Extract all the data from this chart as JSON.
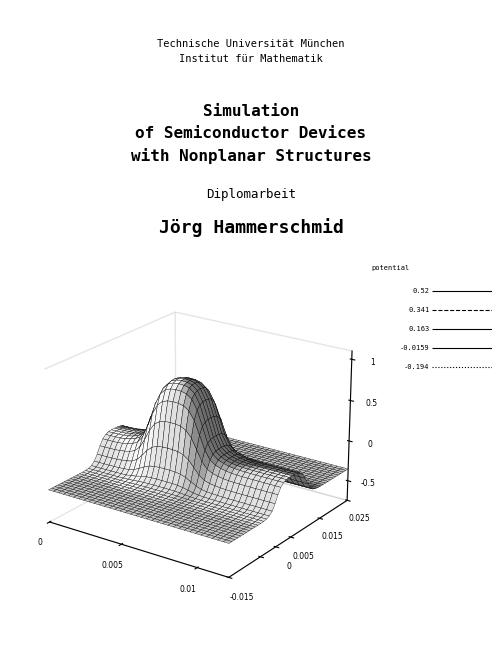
{
  "line1": "Technische Universität München",
  "line2": "Institut für Mathematik",
  "title_line1": "Simulation",
  "title_line2": "of Semiconductor Devices",
  "title_line3": "with Nonplanar Structures",
  "subtitle": "Diplomarbeit",
  "author": "Jörg Hammerschmid",
  "legend_title": "potential",
  "legend_values": [
    0.52,
    0.341,
    0.163,
    -0.0159,
    -0.194
  ],
  "legend_styles": [
    "-",
    "--",
    "-",
    "-",
    ":"
  ],
  "bg_color": "#ffffff",
  "text_color": "#000000",
  "header_fontsize": 7.5,
  "title_fontsize": 11.5,
  "subtitle_fontsize": 9,
  "author_fontsize": 13,
  "plot_elev": 22,
  "plot_azim": -55
}
